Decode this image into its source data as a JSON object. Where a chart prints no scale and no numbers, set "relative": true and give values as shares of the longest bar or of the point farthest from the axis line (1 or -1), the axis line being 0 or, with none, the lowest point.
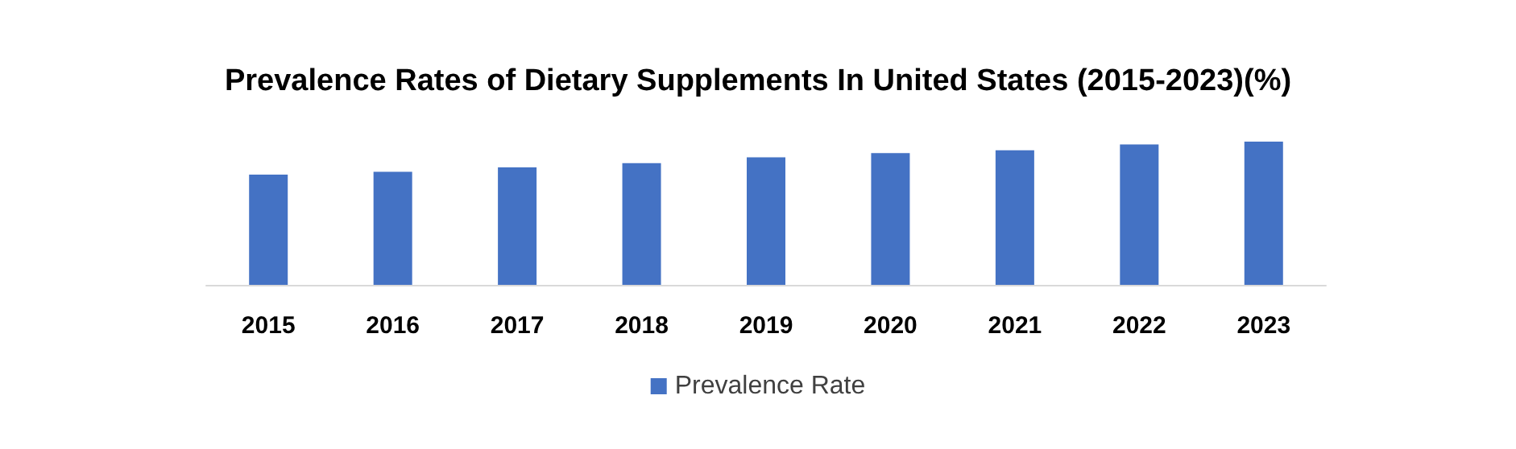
{
  "chart_data": {
    "type": "bar",
    "title": "Prevalence Rates of Dietary Supplements In United States (2015-2023)(%)",
    "categories": [
      "2015",
      "2016",
      "2017",
      "2018",
      "2019",
      "2020",
      "2021",
      "2022",
      "2023"
    ],
    "series": [
      {
        "name": "Prevalence Rate",
        "color": "#4472c4",
        "values": [
          0.77,
          0.79,
          0.82,
          0.85,
          0.89,
          0.92,
          0.94,
          0.98,
          1
        ]
      }
    ],
    "relative": true,
    "legend": "bottom",
    "grid": false
  }
}
